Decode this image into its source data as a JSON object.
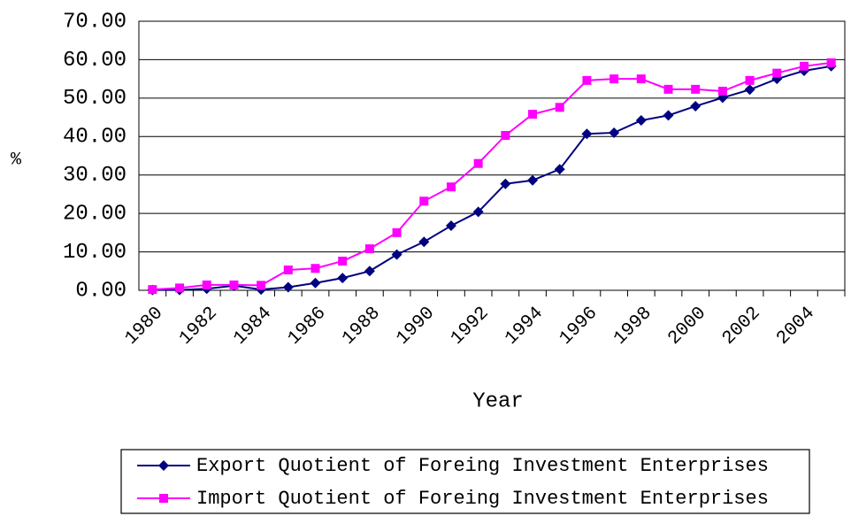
{
  "chart_data": {
    "type": "line",
    "xlabel": "Year",
    "ylabel": "%",
    "categories": [
      "1980",
      null,
      "1982",
      null,
      "1984",
      null,
      "1986",
      null,
      "1988",
      null,
      "1990",
      null,
      "1992",
      null,
      "1994",
      null,
      "1996",
      null,
      "1998",
      null,
      "2000",
      null,
      "2002",
      null,
      "2004",
      null
    ],
    "series": [
      {
        "name": "Export Quotient of Foreing Investment Enterprises",
        "color": "#000080",
        "marker": "diamond",
        "values": [
          0.1,
          0.1,
          0.4,
          1.2,
          0.2,
          0.8,
          1.9,
          3.2,
          5.0,
          9.3,
          12.6,
          16.8,
          20.4,
          27.7,
          28.6,
          31.5,
          40.7,
          41.0,
          44.2,
          45.5,
          47.9,
          50.1,
          52.2,
          55.0,
          57.1,
          58.3
        ]
      },
      {
        "name": "Import Quotient of Foreing Investment Enterprises",
        "color": "#ff00ff",
        "marker": "square",
        "values": [
          0.2,
          0.6,
          1.4,
          1.4,
          1.3,
          5.3,
          5.7,
          7.6,
          10.8,
          15.0,
          23.2,
          26.9,
          33.0,
          40.3,
          45.8,
          47.6,
          54.6,
          55.0,
          55.0,
          52.3,
          52.3,
          51.8,
          54.6,
          56.5,
          58.3,
          59.2
        ]
      }
    ],
    "ylim": [
      0,
      70
    ],
    "yticks": [
      {
        "value": 0,
        "label": "0.00"
      },
      {
        "value": 10,
        "label": "10.00"
      },
      {
        "value": 20,
        "label": "20.00"
      },
      {
        "value": 30,
        "label": "30.00"
      },
      {
        "value": 40,
        "label": "40.00"
      },
      {
        "value": 50,
        "label": "50.00"
      },
      {
        "value": 60,
        "label": "60.00"
      },
      {
        "value": 70,
        "label": "70.00"
      }
    ],
    "grid": true,
    "legend": "bottom"
  }
}
